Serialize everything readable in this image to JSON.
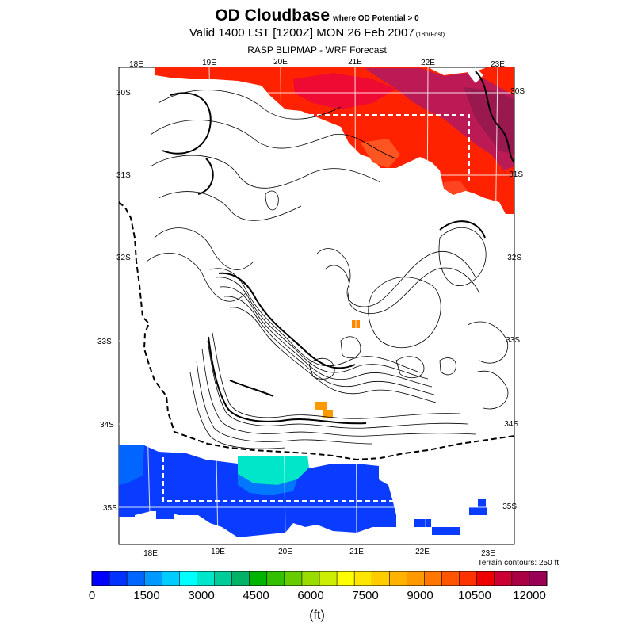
{
  "title": {
    "main": "OD Cloudbase",
    "main_suffix": "where OD Potential > 0",
    "valid": "Valid 1400 LST [1200Z] MON 26 Feb 2007",
    "valid_suffix": "(18hrFcst)",
    "source": "RASP BLIPMAP - WRF Forecast"
  },
  "axes": {
    "top_lon_labels": [
      "18E",
      "19E",
      "20E",
      "21E",
      "22E",
      "23E"
    ],
    "bottom_lon_labels": [
      "18E",
      "19E",
      "20E",
      "21E",
      "22E",
      "23E"
    ],
    "left_lat_labels": [
      "30S",
      "31S",
      "32S",
      "33S",
      "34S",
      "35S"
    ],
    "right_lat_labels": [
      "30S",
      "31S",
      "32S",
      "33S",
      "34S",
      "35S"
    ]
  },
  "terrain_note": "Terrain contours: 250 ft",
  "colorbar": {
    "colors": [
      "#0000ff",
      "#0033ff",
      "#0066ff",
      "#0099ff",
      "#00ccff",
      "#00ffff",
      "#00e6cc",
      "#00cc99",
      "#00b366",
      "#00b300",
      "#33c000",
      "#66cc00",
      "#99dd00",
      "#ccee00",
      "#ffff00",
      "#ffe600",
      "#ffcc00",
      "#ffb300",
      "#ff9900",
      "#ff7700",
      "#ff5500",
      "#ff3300",
      "#ee0000",
      "#cc0033",
      "#aa0044",
      "#990055"
    ],
    "tick_labels": [
      "0",
      "1500",
      "3000",
      "4500",
      "6000",
      "7500",
      "9000",
      "10500",
      "12000"
    ],
    "units": "(ft)"
  }
}
